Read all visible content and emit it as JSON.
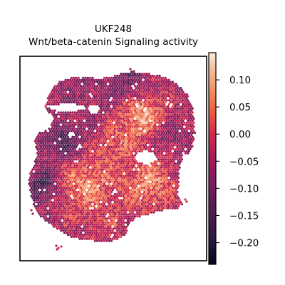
{
  "chart_data": {
    "type": "heatmap",
    "title": "UKF248",
    "subtitle": "Wnt/beta-catenin Signaling activity",
    "colorbar": {
      "ticks": [
        0.1,
        0.05,
        0.0,
        -0.05,
        -0.1,
        -0.15,
        -0.2
      ],
      "tick_labels": [
        "0.10",
        "0.05",
        "0.00",
        "−0.05",
        "−0.10",
        "−0.15",
        "−0.20"
      ],
      "vmin": -0.24,
      "vmax": 0.15,
      "colormap": "rocket"
    },
    "axes": {
      "frame": true,
      "ticks": false,
      "grid": false
    }
  }
}
